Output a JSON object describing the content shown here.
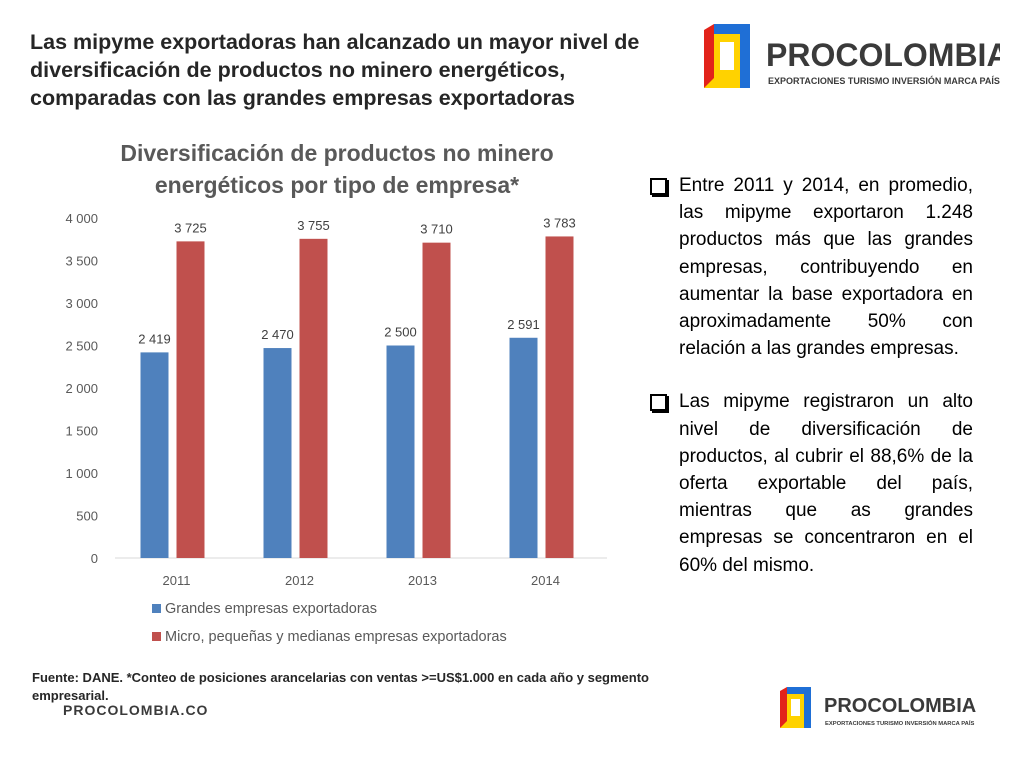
{
  "slide": {
    "title": "Las mipyme exportadoras han alcanzado un mayor nivel de diversificación de productos no minero energéticos, comparadas con las grandes empresas exportadoras",
    "source_note": "Fuente: DANE. *Conteo de posiciones arancelarias con ventas >=US$1.000 en cada año y segmento empresarial.",
    "site": "PROCOLOMBIA.CO"
  },
  "logo": {
    "brand": "PROCOLOMBIA",
    "tagline": "EXPORTACIONES TURISMO INVERSIÓN MARCA PAÍS",
    "colors": {
      "blue": "#1f6fd6",
      "red": "#e2231a",
      "yellow": "#ffd200",
      "dark": "#3a3a3a"
    }
  },
  "bullets": [
    {
      "text": "Entre 2011 y 2014, en promedio, las mipyme exportaron 1.248 productos más que las grandes empresas, contribuyendo en aumentar la base exportadora en aproximadamente 50% con relación a las grandes empresas."
    },
    {
      "text": "Las mipyme registraron un alto nivel de diversificación de productos, al cubrir el 88,6% de la oferta exportable del país, mientras que as grandes empresas se concentraron en el 60% del mismo."
    }
  ],
  "chart_data": {
    "type": "bar",
    "title": "Diversificación de productos no minero energéticos por tipo de empresa*",
    "categories": [
      "2011",
      "2012",
      "2013",
      "2014"
    ],
    "series": [
      {
        "name": "Grandes empresas exportadoras",
        "color": "#4f81bd",
        "values": [
          2419,
          2470,
          2500,
          2591
        ],
        "labels": [
          "2 419",
          "2 470",
          "2 500",
          "2 591"
        ]
      },
      {
        "name": "Micro, pequeñas y medianas empresas exportadoras",
        "color": "#c0504d",
        "values": [
          3725,
          3755,
          3710,
          3783
        ],
        "labels": [
          "3 725",
          "3 755",
          "3 710",
          "3 783"
        ]
      }
    ],
    "ylim": [
      0,
      4000
    ],
    "yticks": [
      0,
      500,
      1000,
      1500,
      2000,
      2500,
      3000,
      3500,
      4000
    ],
    "ytick_labels": [
      "0",
      "500",
      "1 000",
      "1 500",
      "2 000",
      "2 500",
      "3 000",
      "3 500",
      "4 000"
    ],
    "xlabel": "",
    "ylabel": "",
    "legend": "bottom",
    "grid": false
  }
}
